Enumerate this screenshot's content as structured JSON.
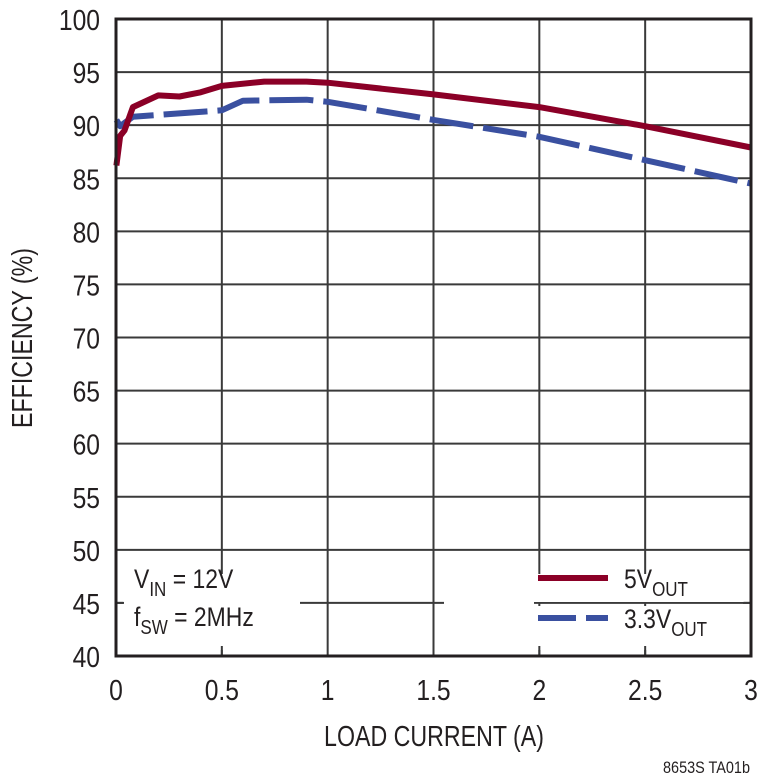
{
  "chart_data": {
    "type": "line",
    "title": "",
    "xlabel": "LOAD CURRENT (A)",
    "ylabel": "EFFICIENCY (%)",
    "xlim": [
      0,
      3
    ],
    "ylim": [
      40,
      100
    ],
    "x_ticks": [
      "0",
      "0.5",
      "1",
      "1.5",
      "2",
      "2.5",
      "3"
    ],
    "y_ticks": [
      "40",
      "45",
      "50",
      "55",
      "60",
      "65",
      "70",
      "75",
      "80",
      "85",
      "90",
      "95",
      "100"
    ],
    "grid": true,
    "legend_position": "lower right",
    "series": [
      {
        "name": "5VOUT",
        "label_main": "5V",
        "label_sub": "OUT",
        "color": "#8b0027",
        "style": "solid",
        "x": [
          0.002,
          0.02,
          0.04,
          0.08,
          0.2,
          0.3,
          0.4,
          0.5,
          0.7,
          0.9,
          1.0,
          1.5,
          2.0,
          2.5,
          3.0
        ],
        "y": [
          86.2,
          89.0,
          89.5,
          91.7,
          92.8,
          92.7,
          93.1,
          93.7,
          94.1,
          94.1,
          94.0,
          92.9,
          91.7,
          89.9,
          87.9
        ]
      },
      {
        "name": "3.3VOUT",
        "label_main": "3.3V",
        "label_sub": "OUT",
        "color": "#3a50a0",
        "style": "dashed",
        "x": [
          0.002,
          0.02,
          0.08,
          0.5,
          0.6,
          0.9,
          1.0,
          1.5,
          2.0,
          2.5,
          3.0
        ],
        "y": [
          90.5,
          89.9,
          90.8,
          91.4,
          92.3,
          92.4,
          92.2,
          90.5,
          88.9,
          86.7,
          84.5
        ]
      }
    ],
    "annotations": [
      {
        "main": "V",
        "sub": "IN",
        "rest": " = 12V"
      },
      {
        "main": "f",
        "sub": "SW",
        "rest": " = 2MHz"
      }
    ],
    "figure_id": "8653S TA01b"
  }
}
